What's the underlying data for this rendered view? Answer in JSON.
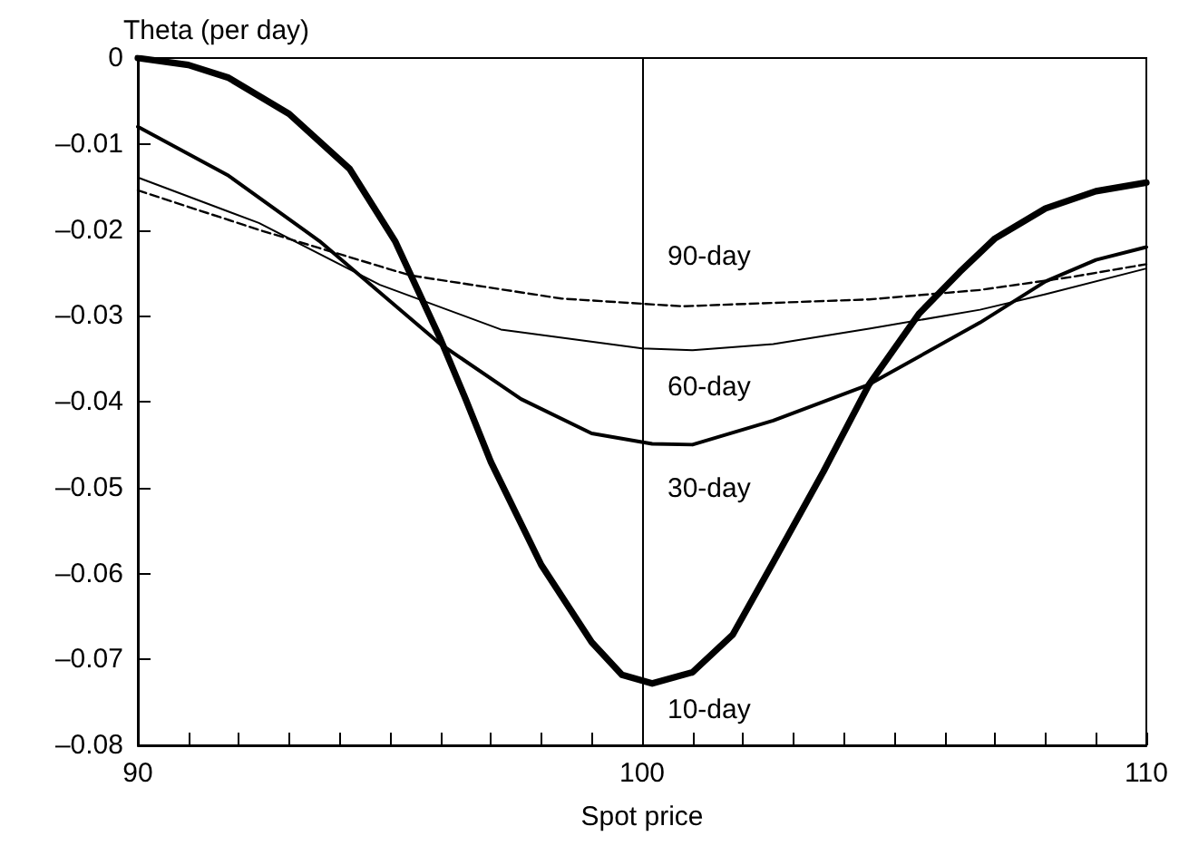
{
  "chart_data": {
    "type": "line",
    "xlabel": "Spot price",
    "ylabel": "Theta (per day)",
    "xlim": [
      90,
      110
    ],
    "xticks": [
      90,
      {
        "value": 91,
        "label": null
      },
      {
        "value": 92,
        "label": null
      },
      {
        "value": 93,
        "label": null
      },
      {
        "value": 94,
        "label": null
      },
      {
        "value": 95,
        "label": null
      },
      {
        "value": 96,
        "label": null
      },
      {
        "value": 97,
        "label": null
      },
      {
        "value": 98,
        "label": null
      },
      {
        "value": 99,
        "label": null
      },
      100,
      {
        "value": 101,
        "label": null
      },
      {
        "value": 102,
        "label": null
      },
      {
        "value": 103,
        "label": null
      },
      {
        "value": 104,
        "label": null
      },
      {
        "value": 105,
        "label": null
      },
      {
        "value": 106,
        "label": null
      },
      {
        "value": 107,
        "label": null
      },
      {
        "value": 108,
        "label": null
      },
      {
        "value": 109,
        "label": null
      },
      110
    ],
    "ylim": [
      -0.08,
      0
    ],
    "yticks": [
      {
        "value": -0.08,
        "label": "–0.08"
      },
      {
        "value": -0.07,
        "label": "–0.07"
      },
      {
        "value": -0.06,
        "label": "–0.06"
      },
      {
        "value": -0.05,
        "label": "–0.05"
      },
      {
        "value": -0.04,
        "label": "–0.04"
      },
      {
        "value": -0.03,
        "label": "–0.03"
      },
      {
        "value": -0.02,
        "label": "–0.02"
      },
      {
        "value": -0.01,
        "label": "–0.01"
      },
      0
    ],
    "grid": false,
    "marker": "none",
    "series": [
      {
        "color": "#000000",
        "line_style": "solid",
        "x": [
          90,
          91,
          91.8,
          93,
          94.2,
          95.1,
          96,
          96.5,
          97,
          98,
          99,
          99.6,
          100.2,
          101,
          101.8,
          102.6,
          103.6,
          104.5,
          105.5,
          106.3,
          107,
          108,
          109,
          110
        ],
        "values": [
          0,
          -0.0008,
          -0.0023,
          -0.0065,
          -0.0129,
          -0.0213,
          -0.0327,
          -0.0397,
          -0.047,
          -0.059,
          -0.068,
          -0.0718,
          -0.0728,
          -0.0715,
          -0.0671,
          -0.0587,
          -0.0481,
          -0.038,
          -0.0297,
          -0.0249,
          -0.021,
          -0.0175,
          -0.0155,
          -0.0145
        ]
      },
      {
        "color": "#000000",
        "line_style": "solid",
        "x": [
          90,
          91.8,
          93.6,
          96,
          97.6,
          99,
          100.2,
          101,
          102.6,
          104.5,
          106.7,
          108,
          109,
          110
        ],
        "values": [
          -0.008,
          -0.0137,
          -0.0213,
          -0.0333,
          -0.0397,
          -0.0437,
          -0.0449,
          -0.045,
          -0.0422,
          -0.038,
          -0.0308,
          -0.026,
          -0.0235,
          -0.022
        ]
      },
      {
        "color": "#000000",
        "line_style": "solid",
        "x": [
          90,
          92.4,
          94.8,
          97.2,
          100,
          101,
          102.6,
          104.5,
          106.7,
          108,
          110
        ],
        "values": [
          -0.0139,
          -0.0192,
          -0.0264,
          -0.0316,
          -0.0338,
          -0.034,
          -0.0333,
          -0.0315,
          -0.0293,
          -0.0275,
          -0.0245
        ]
      },
      {
        "color": "#000000",
        "line_style": "dashed",
        "x": [
          90,
          92.4,
          95.4,
          98.4,
          100.8,
          102.6,
          104.5,
          106.7,
          108.5,
          110
        ],
        "values": [
          -0.0154,
          -0.02,
          -0.0253,
          -0.028,
          -0.0289,
          -0.0285,
          -0.0281,
          -0.027,
          -0.0255,
          -0.024
        ]
      }
    ],
    "ref_lines": [
      {
        "axis": "x",
        "value": 100,
        "color": "#000000"
      }
    ],
    "annotations": [
      "90-day",
      "60-day",
      "30-day",
      "10-day"
    ]
  }
}
